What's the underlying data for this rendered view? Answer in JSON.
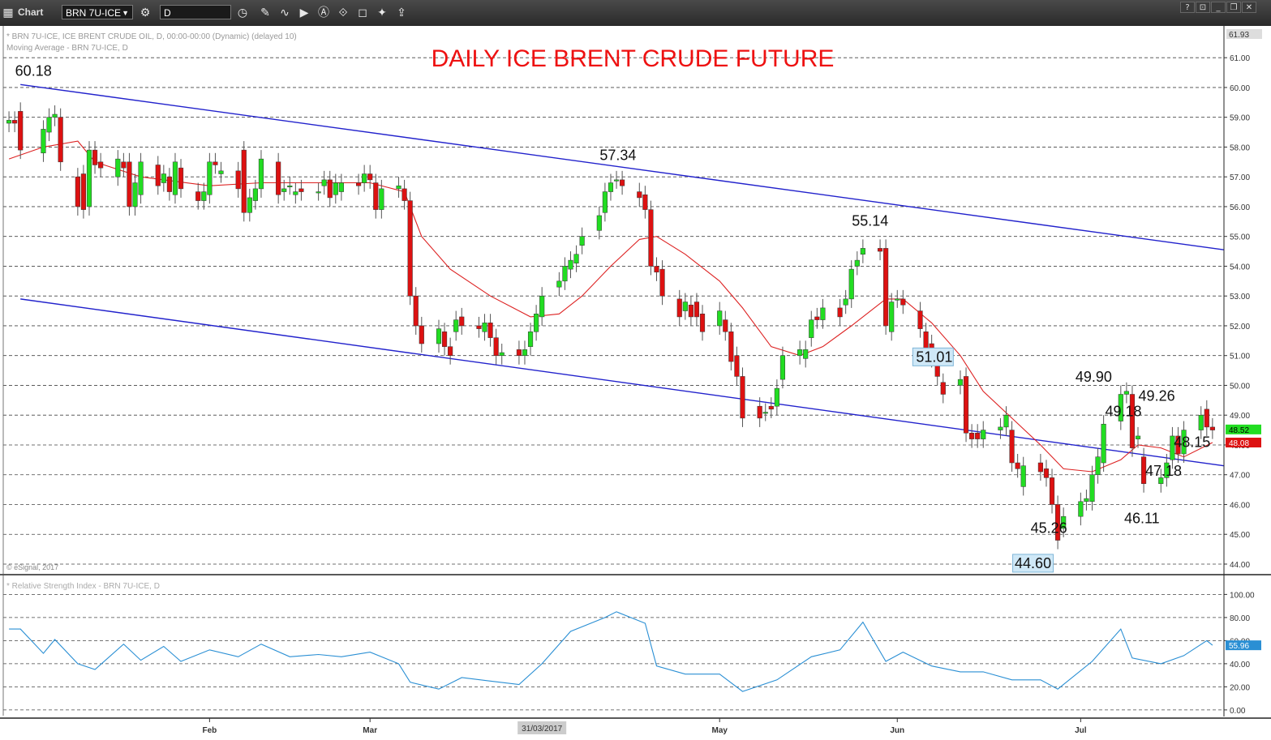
{
  "toolbar": {
    "title": "Chart",
    "symbol": "BRN 7U-ICE",
    "interval": "D"
  },
  "chart_data": {
    "type": "candlestick",
    "title": "DAILY ICE BRENT CRUDE FUTURE",
    "info_line1": "* BRN 7U-ICE, ICE BRENT CRUDE OIL, D, 00:00-00:00 (Dynamic) (delayed 10)",
    "info_line2": "Moving Average - BRN 7U-ICE, D",
    "rsi_label": "* Relative Strength Index - BRN 7U-ICE, D",
    "copyright": "© eSignal, 2017",
    "price_axis": {
      "range": [
        43.7,
        61.93
      ],
      "ticks": [
        "44.00",
        "45.00",
        "46.00",
        "47.00",
        "48.00",
        "49.00",
        "50.00",
        "51.00",
        "52.00",
        "53.00",
        "54.00",
        "55.00",
        "56.00",
        "57.00",
        "58.00",
        "59.00",
        "60.00",
        "61.00"
      ],
      "top_label": "61.93",
      "last_price": "48.52",
      "ma_value": "48.08"
    },
    "rsi_axis": {
      "range": [
        -5,
        108
      ],
      "ticks": [
        "0.00",
        "20.00",
        "40.00",
        "60.00",
        "80.00",
        "100.00"
      ],
      "last_value": "55.96"
    },
    "x_axis": {
      "labels": [
        {
          "label": "Feb",
          "date": "2017-02-01"
        },
        {
          "label": "Mar",
          "date": "2017-03-01"
        },
        {
          "label": "May",
          "date": "2017-05-01"
        },
        {
          "label": "Jun",
          "date": "2017-06-01"
        },
        {
          "label": "Jul",
          "date": "2017-07-03"
        }
      ],
      "cursor_label": "31/03/2017"
    },
    "price_annotations": [
      {
        "text": "60.18",
        "value": 60.18,
        "date": "2016-12-30",
        "anchor": "above"
      },
      {
        "text": "57.34",
        "value": 57.34,
        "date": "2017-04-11",
        "anchor": "above"
      },
      {
        "text": "55.14",
        "value": 55.14,
        "date": "2017-05-25",
        "anchor": "above"
      },
      {
        "text": "51.01",
        "value": 51.01,
        "date": "2017-06-02",
        "anchor": "right",
        "boxed": true
      },
      {
        "text": "49.90",
        "value": 49.9,
        "date": "2017-07-03",
        "anchor": "above"
      },
      {
        "text": "49.18",
        "value": 49.18,
        "date": "2017-07-05",
        "anchor": "right"
      },
      {
        "text": "49.26",
        "value": 49.26,
        "date": "2017-07-14",
        "anchor": "above"
      },
      {
        "text": "48.15",
        "value": 48.15,
        "date": "2017-07-17",
        "anchor": "right"
      },
      {
        "text": "47.18",
        "value": 47.18,
        "date": "2017-07-12",
        "anchor": "right"
      },
      {
        "text": "46.11",
        "value": 46.11,
        "date": "2017-07-10",
        "anchor": "below"
      },
      {
        "text": "45.26",
        "value": 45.26,
        "date": "2017-06-22",
        "anchor": "right"
      },
      {
        "text": "44.60",
        "value": 44.6,
        "date": "2017-06-21",
        "anchor": "below",
        "boxed": true
      }
    ],
    "trendlines": [
      {
        "from": {
          "date": "2016-12-30",
          "value": 60.1
        },
        "to": {
          "date": "2017-07-28",
          "value": 54.55
        }
      },
      {
        "from": {
          "date": "2016-12-30",
          "value": 52.9
        },
        "to": {
          "date": "2017-07-28",
          "value": 47.3
        }
      }
    ],
    "candles": [
      [
        "2016-12-28",
        58.8,
        58.9
      ],
      [
        "2016-12-29",
        58.9,
        58.8
      ],
      [
        "2016-12-30",
        59.2,
        57.9
      ],
      [
        "2017-01-03",
        57.8,
        58.6
      ],
      [
        "2017-01-04",
        58.5,
        59.0
      ],
      [
        "2017-01-05",
        59.0,
        59.1
      ],
      [
        "2017-01-06",
        59.0,
        57.5
      ],
      [
        "2017-01-09",
        57.0,
        56.0
      ],
      [
        "2017-01-10",
        57.1,
        55.9
      ],
      [
        "2017-01-11",
        56.0,
        57.9
      ],
      [
        "2017-01-12",
        57.9,
        57.4
      ],
      [
        "2017-01-13",
        57.5,
        57.3
      ],
      [
        "2017-01-16",
        57.0,
        57.6
      ],
      [
        "2017-01-17",
        57.5,
        57.3
      ],
      [
        "2017-01-18",
        57.5,
        56.0
      ],
      [
        "2017-01-19",
        56.0,
        56.8
      ],
      [
        "2017-01-20",
        56.4,
        57.5
      ],
      [
        "2017-01-23",
        57.4,
        56.7
      ],
      [
        "2017-01-24",
        56.8,
        57.1
      ],
      [
        "2017-01-25",
        57.0,
        56.5
      ],
      [
        "2017-01-26",
        56.4,
        57.5
      ],
      [
        "2017-01-27",
        57.3,
        56.6
      ],
      [
        "2017-01-30",
        56.5,
        56.2
      ],
      [
        "2017-01-31",
        56.2,
        56.5
      ],
      [
        "2017-02-01",
        56.4,
        57.5
      ],
      [
        "2017-02-02",
        57.5,
        57.4
      ],
      [
        "2017-02-03",
        57.1,
        57.2
      ],
      [
        "2017-02-06",
        57.2,
        56.6
      ],
      [
        "2017-02-07",
        57.9,
        55.8
      ],
      [
        "2017-02-08",
        55.8,
        56.3
      ],
      [
        "2017-02-09",
        56.2,
        56.6
      ],
      [
        "2017-02-10",
        56.6,
        57.6
      ],
      [
        "2017-02-13",
        57.5,
        56.4
      ],
      [
        "2017-02-14",
        56.5,
        56.6
      ],
      [
        "2017-02-15",
        56.7,
        56.7
      ],
      [
        "2017-02-16",
        56.4,
        56.5
      ],
      [
        "2017-02-17",
        56.6,
        56.5
      ],
      [
        "2017-02-20",
        56.5,
        56.5
      ],
      [
        "2017-02-21",
        56.7,
        56.9
      ],
      [
        "2017-02-22",
        56.9,
        56.3
      ],
      [
        "2017-02-23",
        56.4,
        56.8
      ],
      [
        "2017-02-24",
        56.5,
        56.8
      ],
      [
        "2017-02-27",
        56.8,
        56.7
      ],
      [
        "2017-02-28",
        56.8,
        57.1
      ],
      [
        "2017-03-01",
        57.1,
        56.9
      ],
      [
        "2017-03-02",
        56.8,
        55.9
      ],
      [
        "2017-03-03",
        55.9,
        56.6
      ],
      [
        "2017-03-06",
        56.6,
        56.7
      ],
      [
        "2017-03-07",
        56.6,
        56.2
      ],
      [
        "2017-03-08",
        56.2,
        53.0
      ],
      [
        "2017-03-09",
        53.0,
        52.0
      ],
      [
        "2017-03-10",
        52.0,
        51.4
      ],
      [
        "2017-03-13",
        51.4,
        51.9
      ],
      [
        "2017-03-14",
        51.8,
        51.3
      ],
      [
        "2017-03-15",
        51.3,
        51.0
      ],
      [
        "2017-03-16",
        51.8,
        52.2
      ],
      [
        "2017-03-17",
        52.3,
        52.0
      ],
      [
        "2017-03-20",
        52.0,
        51.9
      ],
      [
        "2017-03-21",
        51.8,
        52.1
      ],
      [
        "2017-03-22",
        52.1,
        51.6
      ],
      [
        "2017-03-23",
        51.6,
        51.0
      ],
      [
        "2017-03-24",
        51.0,
        51.1
      ],
      [
        "2017-03-27",
        51.2,
        51.0
      ],
      [
        "2017-03-28",
        51.0,
        51.2
      ],
      [
        "2017-03-29",
        51.3,
        51.8
      ],
      [
        "2017-03-30",
        51.8,
        52.4
      ],
      [
        "2017-03-31",
        52.3,
        53.0
      ],
      [
        "2017-04-03",
        53.3,
        53.5
      ],
      [
        "2017-04-04",
        53.5,
        54.0
      ],
      [
        "2017-04-05",
        53.9,
        54.2
      ],
      [
        "2017-04-06",
        54.1,
        54.4
      ],
      [
        "2017-04-07",
        54.7,
        55.0
      ],
      [
        "2017-04-10",
        55.2,
        55.7
      ],
      [
        "2017-04-11",
        55.8,
        56.5
      ],
      [
        "2017-04-12",
        56.5,
        56.8
      ],
      [
        "2017-04-13",
        56.9,
        56.9
      ],
      [
        "2017-04-14",
        56.9,
        56.7
      ],
      [
        "2017-04-17",
        56.5,
        56.3
      ],
      [
        "2017-04-18",
        56.4,
        55.9
      ],
      [
        "2017-04-19",
        55.9,
        54.0
      ],
      [
        "2017-04-20",
        54.0,
        53.8
      ],
      [
        "2017-04-21",
        53.9,
        53.0
      ],
      [
        "2017-04-24",
        52.9,
        52.3
      ],
      [
        "2017-04-25",
        52.5,
        52.8
      ],
      [
        "2017-04-26",
        52.7,
        52.3
      ],
      [
        "2017-04-27",
        52.8,
        52.3
      ],
      [
        "2017-04-28",
        52.4,
        51.8
      ],
      [
        "2017-05-01",
        52.0,
        52.5
      ],
      [
        "2017-05-02",
        52.2,
        51.8
      ],
      [
        "2017-05-03",
        51.8,
        50.8
      ],
      [
        "2017-05-04",
        51.0,
        50.3
      ],
      [
        "2017-05-05",
        50.3,
        48.9
      ],
      [
        "2017-05-08",
        49.3,
        48.9
      ],
      [
        "2017-05-09",
        49.1,
        49.1
      ],
      [
        "2017-05-10",
        49.3,
        49.2
      ],
      [
        "2017-05-11",
        49.3,
        49.9
      ],
      [
        "2017-05-12",
        50.2,
        51.0
      ],
      [
        "2017-05-15",
        51.0,
        51.2
      ],
      [
        "2017-05-16",
        50.9,
        51.2
      ],
      [
        "2017-05-17",
        51.6,
        52.2
      ],
      [
        "2017-05-18",
        52.3,
        52.2
      ],
      [
        "2017-05-19",
        52.2,
        52.6
      ],
      [
        "2017-05-22",
        52.6,
        52.3
      ],
      [
        "2017-05-23",
        52.7,
        52.9
      ],
      [
        "2017-05-24",
        52.9,
        53.9
      ],
      [
        "2017-05-25",
        54.0,
        54.2
      ],
      [
        "2017-05-26",
        54.4,
        54.6
      ],
      [
        "2017-05-29",
        54.6,
        54.5
      ],
      [
        "2017-05-30",
        54.6,
        52.0
      ],
      [
        "2017-05-31",
        51.8,
        52.8
      ],
      [
        "2017-06-01",
        52.9,
        52.9
      ],
      [
        "2017-06-02",
        52.9,
        52.7
      ],
      [
        "2017-06-05",
        52.5,
        51.9
      ],
      [
        "2017-06-06",
        51.8,
        51.1
      ],
      [
        "2017-06-07",
        51.4,
        50.9
      ],
      [
        "2017-06-08",
        50.7,
        50.3
      ],
      [
        "2017-06-09",
        50.1,
        49.7
      ],
      [
        "2017-06-12",
        50.0,
        50.2
      ],
      [
        "2017-06-13",
        50.3,
        48.4
      ],
      [
        "2017-06-14",
        48.4,
        48.2
      ],
      [
        "2017-06-15",
        48.4,
        48.2
      ],
      [
        "2017-06-16",
        48.2,
        48.5
      ],
      [
        "2017-06-19",
        48.5,
        48.6
      ],
      [
        "2017-06-20",
        48.6,
        49.0
      ],
      [
        "2017-06-21",
        48.5,
        47.4
      ],
      [
        "2017-06-22",
        47.4,
        47.2
      ],
      [
        "2017-06-23",
        46.6,
        47.3
      ],
      [
        "2017-06-26",
        47.4,
        47.1
      ],
      [
        "2017-06-27",
        47.2,
        46.9
      ],
      [
        "2017-06-28",
        46.9,
        46.0
      ],
      [
        "2017-06-29",
        46.0,
        44.8
      ],
      [
        "2017-06-30",
        45.2,
        45.6
      ],
      [
        "2017-07-03",
        45.6,
        46.1
      ],
      [
        "2017-07-04",
        46.1,
        46.2
      ],
      [
        "2017-07-05",
        46.1,
        47.0
      ],
      [
        "2017-07-06",
        47.0,
        47.6
      ],
      [
        "2017-07-07",
        47.4,
        48.7
      ],
      [
        "2017-07-10",
        48.8,
        49.7
      ],
      [
        "2017-07-11",
        49.7,
        49.8
      ],
      [
        "2017-07-12",
        49.7,
        47.9
      ],
      [
        "2017-07-13",
        48.2,
        48.3
      ],
      [
        "2017-07-14",
        47.6,
        46.7
      ],
      [
        "2017-07-17",
        46.7,
        46.9
      ],
      [
        "2017-07-18",
        46.9,
        47.4
      ],
      [
        "2017-07-19",
        47.5,
        48.3
      ],
      [
        "2017-07-20",
        48.3,
        47.7
      ],
      [
        "2017-07-21",
        47.7,
        48.5
      ],
      [
        "2017-07-24",
        48.5,
        49.0
      ],
      [
        "2017-07-25",
        49.2,
        48.6
      ],
      [
        "2017-07-26",
        48.6,
        48.5
      ]
    ],
    "moving_average": [
      [
        "2016-12-28",
        57.6
      ],
      [
        "2017-01-03",
        58.0
      ],
      [
        "2017-01-09",
        58.2
      ],
      [
        "2017-01-12",
        57.5
      ],
      [
        "2017-01-20",
        57.0
      ],
      [
        "2017-02-01",
        56.7
      ],
      [
        "2017-02-10",
        56.8
      ],
      [
        "2017-02-20",
        56.8
      ],
      [
        "2017-03-01",
        56.8
      ],
      [
        "2017-03-07",
        56.5
      ],
      [
        "2017-03-10",
        55.0
      ],
      [
        "2017-03-15",
        53.9
      ],
      [
        "2017-03-22",
        53.0
      ],
      [
        "2017-03-29",
        52.3
      ],
      [
        "2017-04-03",
        52.4
      ],
      [
        "2017-04-07",
        53.0
      ],
      [
        "2017-04-12",
        54.0
      ],
      [
        "2017-04-17",
        54.9
      ],
      [
        "2017-04-20",
        55.0
      ],
      [
        "2017-04-25",
        54.4
      ],
      [
        "2017-05-01",
        53.5
      ],
      [
        "2017-05-05",
        52.6
      ],
      [
        "2017-05-10",
        51.3
      ],
      [
        "2017-05-15",
        51.0
      ],
      [
        "2017-05-19",
        51.3
      ],
      [
        "2017-05-24",
        52.0
      ],
      [
        "2017-05-30",
        52.9
      ],
      [
        "2017-06-02",
        52.9
      ],
      [
        "2017-06-07",
        52.1
      ],
      [
        "2017-06-12",
        51.0
      ],
      [
        "2017-06-16",
        49.8
      ],
      [
        "2017-06-21",
        48.9
      ],
      [
        "2017-06-26",
        48.0
      ],
      [
        "2017-06-30",
        47.2
      ],
      [
        "2017-07-05",
        47.1
      ],
      [
        "2017-07-10",
        47.5
      ],
      [
        "2017-07-13",
        48.0
      ],
      [
        "2017-07-17",
        47.9
      ],
      [
        "2017-07-21",
        47.6
      ],
      [
        "2017-07-26",
        48.08
      ]
    ],
    "rsi": [
      [
        "2016-12-28",
        70
      ],
      [
        "2016-12-30",
        70
      ],
      [
        "2017-01-03",
        49
      ],
      [
        "2017-01-05",
        61
      ],
      [
        "2017-01-09",
        40
      ],
      [
        "2017-01-12",
        35
      ],
      [
        "2017-01-17",
        57
      ],
      [
        "2017-01-20",
        43
      ],
      [
        "2017-01-24",
        55
      ],
      [
        "2017-01-27",
        42
      ],
      [
        "2017-02-01",
        52
      ],
      [
        "2017-02-06",
        46
      ],
      [
        "2017-02-10",
        57
      ],
      [
        "2017-02-15",
        46
      ],
      [
        "2017-02-20",
        48
      ],
      [
        "2017-02-24",
        46
      ],
      [
        "2017-03-01",
        50
      ],
      [
        "2017-03-06",
        40
      ],
      [
        "2017-03-08",
        24
      ],
      [
        "2017-03-13",
        18
      ],
      [
        "2017-03-17",
        28
      ],
      [
        "2017-03-22",
        25
      ],
      [
        "2017-03-27",
        22
      ],
      [
        "2017-03-31",
        40
      ],
      [
        "2017-04-05",
        68
      ],
      [
        "2017-04-11",
        80
      ],
      [
        "2017-04-13",
        85
      ],
      [
        "2017-04-18",
        75
      ],
      [
        "2017-04-20",
        38
      ],
      [
        "2017-04-25",
        31
      ],
      [
        "2017-05-01",
        31
      ],
      [
        "2017-05-05",
        16
      ],
      [
        "2017-05-11",
        26
      ],
      [
        "2017-05-17",
        46
      ],
      [
        "2017-05-22",
        52
      ],
      [
        "2017-05-26",
        76
      ],
      [
        "2017-05-30",
        42
      ],
      [
        "2017-06-02",
        50
      ],
      [
        "2017-06-07",
        38
      ],
      [
        "2017-06-12",
        33
      ],
      [
        "2017-06-16",
        33
      ],
      [
        "2017-06-21",
        26
      ],
      [
        "2017-06-26",
        26
      ],
      [
        "2017-06-29",
        18
      ],
      [
        "2017-07-05",
        42
      ],
      [
        "2017-07-10",
        70
      ],
      [
        "2017-07-12",
        45
      ],
      [
        "2017-07-17",
        40
      ],
      [
        "2017-07-21",
        47
      ],
      [
        "2017-07-25",
        60
      ],
      [
        "2017-07-26",
        55.96
      ]
    ]
  }
}
